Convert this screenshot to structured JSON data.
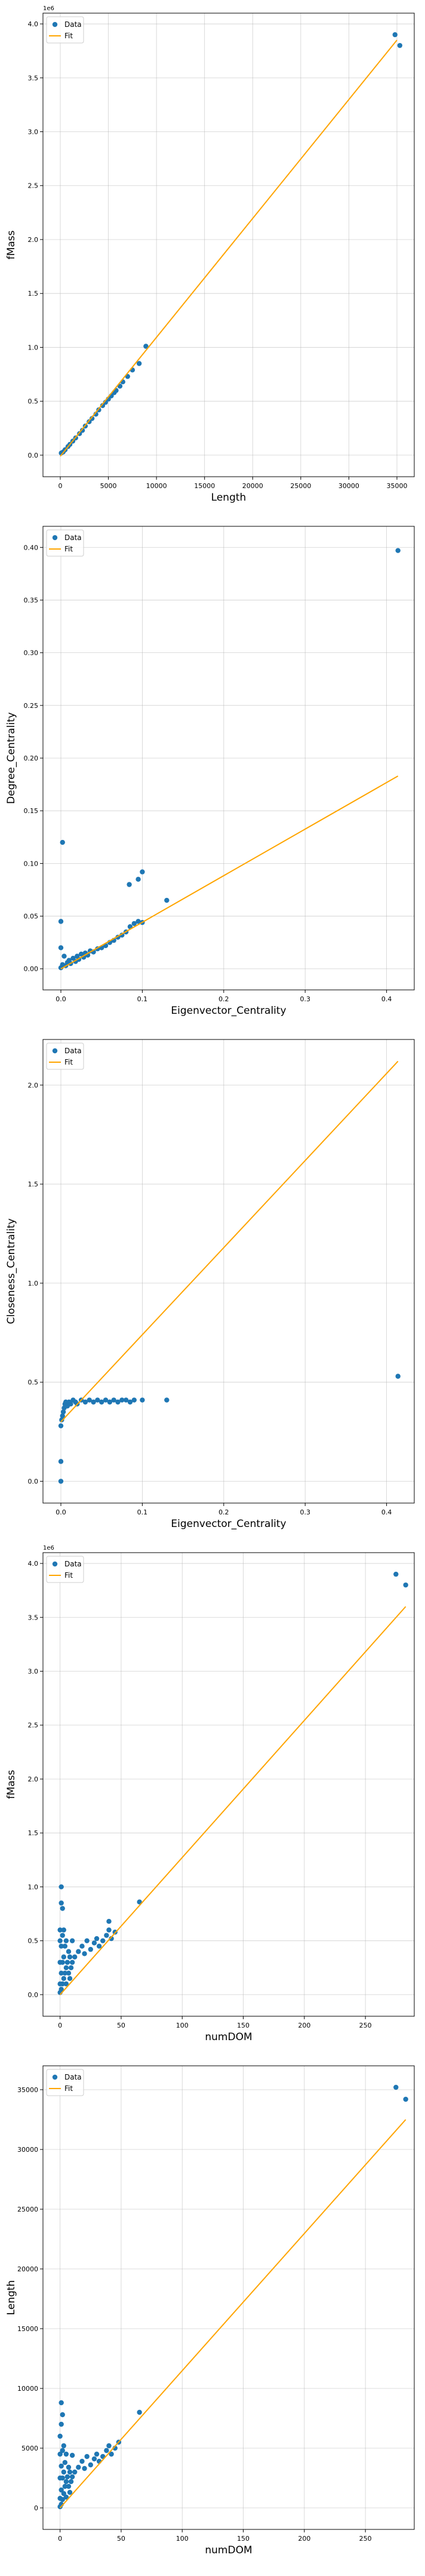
{
  "legend": {
    "data_label": "Data",
    "fit_label": "Fit"
  },
  "colors": {
    "data": "#1f77b4",
    "fit": "#ffa500",
    "grid": "#b0b0b0",
    "axis": "#000000"
  },
  "chart_data": [
    {
      "type": "scatter",
      "xlabel": "Length",
      "ylabel": "fMass",
      "y_multiplier": "1e6",
      "xlim": [
        -1800,
        36800
      ],
      "ylim": [
        -0.2,
        4.1
      ],
      "xticks": [
        0,
        5000,
        10000,
        15000,
        20000,
        25000,
        30000,
        35000
      ],
      "xtick_labels": [
        "0",
        "5000",
        "10000",
        "15000",
        "20000",
        "25000",
        "30000",
        "35000"
      ],
      "yticks": [
        0.0,
        0.5,
        1.0,
        1.5,
        2.0,
        2.5,
        3.0,
        3.5,
        4.0
      ],
      "ytick_labels": [
        "0.0",
        "0.5",
        "1.0",
        "1.5",
        "2.0",
        "2.5",
        "3.0",
        "3.5",
        "4.0"
      ],
      "legend_position": "top-left",
      "grid": true,
      "series": [
        {
          "name": "Data",
          "kind": "points",
          "points": [
            [
              100,
              0.02
            ],
            [
              300,
              0.03
            ],
            [
              500,
              0.05
            ],
            [
              800,
              0.08
            ],
            [
              1000,
              0.1
            ],
            [
              1300,
              0.13
            ],
            [
              1600,
              0.16
            ],
            [
              2000,
              0.2
            ],
            [
              2300,
              0.23
            ],
            [
              2600,
              0.27
            ],
            [
              3000,
              0.31
            ],
            [
              3300,
              0.34
            ],
            [
              3700,
              0.38
            ],
            [
              4000,
              0.42
            ],
            [
              4400,
              0.46
            ],
            [
              4700,
              0.49
            ],
            [
              5000,
              0.52
            ],
            [
              5300,
              0.55
            ],
            [
              5600,
              0.58
            ],
            [
              5800,
              0.6
            ],
            [
              6200,
              0.64
            ],
            [
              6500,
              0.68
            ],
            [
              7000,
              0.73
            ],
            [
              7500,
              0.79
            ],
            [
              8200,
              0.85
            ],
            [
              8900,
              1.01
            ],
            [
              34800,
              3.9
            ],
            [
              35300,
              3.8
            ]
          ]
        },
        {
          "name": "Fit",
          "kind": "line",
          "points": [
            [
              0,
              -0.01
            ],
            [
              35000,
              3.85
            ]
          ]
        }
      ]
    },
    {
      "type": "scatter",
      "xlabel": "Eigenvector_Centrality",
      "ylabel": "Degree_Centrality",
      "xlim": [
        -0.022,
        0.434
      ],
      "ylim": [
        -0.02,
        0.42
      ],
      "xticks": [
        0.0,
        0.1,
        0.2,
        0.3,
        0.4
      ],
      "xtick_labels": [
        "0.0",
        "0.1",
        "0.2",
        "0.3",
        "0.4"
      ],
      "yticks": [
        0.0,
        0.05,
        0.1,
        0.15,
        0.2,
        0.25,
        0.3,
        0.35,
        0.4
      ],
      "ytick_labels": [
        "0.00",
        "0.05",
        "0.10",
        "0.15",
        "0.20",
        "0.25",
        "0.30",
        "0.35",
        "0.40"
      ],
      "legend_position": "top-left",
      "grid": true,
      "series": [
        {
          "name": "Data",
          "kind": "points",
          "points": [
            [
              0.0,
              0.001
            ],
            [
              0.002,
              0.004
            ],
            [
              0.004,
              0.012
            ],
            [
              0.006,
              0.003
            ],
            [
              0.008,
              0.006
            ],
            [
              0.01,
              0.008
            ],
            [
              0.012,
              0.005
            ],
            [
              0.015,
              0.01
            ],
            [
              0.018,
              0.007
            ],
            [
              0.02,
              0.012
            ],
            [
              0.022,
              0.009
            ],
            [
              0.025,
              0.014
            ],
            [
              0.028,
              0.011
            ],
            [
              0.03,
              0.015
            ],
            [
              0.033,
              0.013
            ],
            [
              0.036,
              0.017
            ],
            [
              0.04,
              0.016
            ],
            [
              0.045,
              0.019
            ],
            [
              0.05,
              0.02
            ],
            [
              0.055,
              0.022
            ],
            [
              0.06,
              0.025
            ],
            [
              0.065,
              0.027
            ],
            [
              0.07,
              0.03
            ],
            [
              0.075,
              0.032
            ],
            [
              0.08,
              0.035
            ],
            [
              0.085,
              0.04
            ],
            [
              0.09,
              0.043
            ],
            [
              0.095,
              0.045
            ],
            [
              0.1,
              0.044
            ],
            [
              0.0,
              0.045
            ],
            [
              0.0,
              0.02
            ],
            [
              0.002,
              0.12
            ],
            [
              0.084,
              0.08
            ],
            [
              0.095,
              0.085
            ],
            [
              0.1,
              0.092
            ],
            [
              0.13,
              0.065
            ],
            [
              0.414,
              0.397
            ]
          ]
        },
        {
          "name": "Fit",
          "kind": "line",
          "points": [
            [
              0.0,
              0.0
            ],
            [
              0.414,
              0.183
            ]
          ]
        }
      ]
    },
    {
      "type": "scatter",
      "xlabel": "Eigenvector_Centrality",
      "ylabel": "Closeness_Centrality",
      "xlim": [
        -0.022,
        0.434
      ],
      "ylim": [
        -0.11,
        2.23
      ],
      "xticks": [
        0.0,
        0.1,
        0.2,
        0.3,
        0.4
      ],
      "xtick_labels": [
        "0.0",
        "0.1",
        "0.2",
        "0.3",
        "0.4"
      ],
      "yticks": [
        0.0,
        0.5,
        1.0,
        1.5,
        2.0
      ],
      "ytick_labels": [
        "0.0",
        "0.5",
        "1.0",
        "1.5",
        "2.0"
      ],
      "legend_position": "top-left",
      "grid": true,
      "series": [
        {
          "name": "Data",
          "kind": "points",
          "points": [
            [
              0.0,
              0.0
            ],
            [
              0.0,
              0.1
            ],
            [
              0.0,
              0.28
            ],
            [
              0.001,
              0.31
            ],
            [
              0.002,
              0.33
            ],
            [
              0.003,
              0.35
            ],
            [
              0.004,
              0.37
            ],
            [
              0.005,
              0.39
            ],
            [
              0.006,
              0.4
            ],
            [
              0.008,
              0.38
            ],
            [
              0.01,
              0.4
            ],
            [
              0.012,
              0.39
            ],
            [
              0.015,
              0.41
            ],
            [
              0.018,
              0.4
            ],
            [
              0.02,
              0.39
            ],
            [
              0.025,
              0.41
            ],
            [
              0.03,
              0.4
            ],
            [
              0.035,
              0.41
            ],
            [
              0.04,
              0.4
            ],
            [
              0.045,
              0.41
            ],
            [
              0.05,
              0.4
            ],
            [
              0.055,
              0.41
            ],
            [
              0.06,
              0.4
            ],
            [
              0.065,
              0.41
            ],
            [
              0.07,
              0.4
            ],
            [
              0.075,
              0.41
            ],
            [
              0.08,
              0.41
            ],
            [
              0.085,
              0.4
            ],
            [
              0.09,
              0.41
            ],
            [
              0.1,
              0.41
            ],
            [
              0.13,
              0.41
            ],
            [
              0.414,
              0.53
            ]
          ]
        },
        {
          "name": "Fit",
          "kind": "line",
          "points": [
            [
              0.0,
              0.3
            ],
            [
              0.414,
              2.12
            ]
          ]
        }
      ]
    },
    {
      "type": "scatter",
      "xlabel": "numDOM",
      "ylabel": "fMass",
      "y_multiplier": "1e6",
      "xlim": [
        -14,
        290
      ],
      "ylim": [
        -0.2,
        4.1
      ],
      "xticks": [
        0,
        50,
        100,
        150,
        200,
        250
      ],
      "xtick_labels": [
        "0",
        "50",
        "100",
        "150",
        "200",
        "250"
      ],
      "yticks": [
        0.0,
        0.5,
        1.0,
        1.5,
        2.0,
        2.5,
        3.0,
        3.5,
        4.0
      ],
      "ytick_labels": [
        "0.0",
        "0.5",
        "1.0",
        "1.5",
        "2.0",
        "2.5",
        "3.0",
        "3.5",
        "4.0"
      ],
      "legend_position": "top-left",
      "grid": true,
      "series": [
        {
          "name": "Data",
          "kind": "points",
          "points": [
            [
              0,
              0.02
            ],
            [
              0,
              0.1
            ],
            [
              0,
              0.3
            ],
            [
              0,
              0.5
            ],
            [
              0,
              0.6
            ],
            [
              1,
              0.05
            ],
            [
              1,
              0.2
            ],
            [
              1,
              0.45
            ],
            [
              1,
              0.85
            ],
            [
              1,
              1.0
            ],
            [
              2,
              0.1
            ],
            [
              2,
              0.3
            ],
            [
              2,
              0.55
            ],
            [
              2,
              0.8
            ],
            [
              3,
              0.15
            ],
            [
              3,
              0.35
            ],
            [
              3,
              0.6
            ],
            [
              4,
              0.2
            ],
            [
              4,
              0.45
            ],
            [
              5,
              0.1
            ],
            [
              5,
              0.25
            ],
            [
              5,
              0.5
            ],
            [
              6,
              0.3
            ],
            [
              7,
              0.2
            ],
            [
              7,
              0.4
            ],
            [
              8,
              0.15
            ],
            [
              8,
              0.35
            ],
            [
              9,
              0.25
            ],
            [
              10,
              0.3
            ],
            [
              10,
              0.5
            ],
            [
              12,
              0.35
            ],
            [
              15,
              0.4
            ],
            [
              18,
              0.45
            ],
            [
              20,
              0.38
            ],
            [
              22,
              0.5
            ],
            [
              25,
              0.42
            ],
            [
              28,
              0.48
            ],
            [
              30,
              0.52
            ],
            [
              32,
              0.45
            ],
            [
              35,
              0.5
            ],
            [
              38,
              0.55
            ],
            [
              40,
              0.6
            ],
            [
              42,
              0.52
            ],
            [
              45,
              0.58
            ],
            [
              40,
              0.68
            ],
            [
              65,
              0.86
            ],
            [
              275,
              3.9
            ],
            [
              283,
              3.8
            ]
          ]
        },
        {
          "name": "Fit",
          "kind": "line",
          "points": [
            [
              0,
              0.0
            ],
            [
              283,
              3.6
            ]
          ]
        }
      ]
    },
    {
      "type": "scatter",
      "xlabel": "numDOM",
      "ylabel": "Length",
      "xlim": [
        -14,
        290
      ],
      "ylim": [
        -1800,
        37000
      ],
      "xticks": [
        0,
        50,
        100,
        150,
        200,
        250
      ],
      "xtick_labels": [
        "0",
        "50",
        "100",
        "150",
        "200",
        "250"
      ],
      "yticks": [
        0,
        5000,
        10000,
        15000,
        20000,
        25000,
        30000,
        35000
      ],
      "ytick_labels": [
        "0",
        "5000",
        "10000",
        "15000",
        "20000",
        "25000",
        "30000",
        "35000"
      ],
      "legend_position": "top-left",
      "grid": true,
      "series": [
        {
          "name": "Data",
          "kind": "points",
          "points": [
            [
              0,
              100
            ],
            [
              0,
              800
            ],
            [
              0,
              2500
            ],
            [
              0,
              4500
            ],
            [
              0,
              6000
            ],
            [
              1,
              300
            ],
            [
              1,
              1500
            ],
            [
              1,
              3500
            ],
            [
              1,
              7000
            ],
            [
              1,
              8800
            ],
            [
              2,
              700
            ],
            [
              2,
              2500
            ],
            [
              2,
              4800
            ],
            [
              2,
              7800
            ],
            [
              3,
              1200
            ],
            [
              3,
              3000
            ],
            [
              3,
              5200
            ],
            [
              4,
              1800
            ],
            [
              4,
              3800
            ],
            [
              5,
              900
            ],
            [
              5,
              2200
            ],
            [
              5,
              4500
            ],
            [
              6,
              2600
            ],
            [
              7,
              1800
            ],
            [
              7,
              3400
            ],
            [
              8,
              1300
            ],
            [
              8,
              3000
            ],
            [
              9,
              2200
            ],
            [
              10,
              2600
            ],
            [
              10,
              4400
            ],
            [
              12,
              3000
            ],
            [
              15,
              3400
            ],
            [
              18,
              3900
            ],
            [
              20,
              3300
            ],
            [
              22,
              4300
            ],
            [
              25,
              3600
            ],
            [
              28,
              4100
            ],
            [
              30,
              4500
            ],
            [
              32,
              3900
            ],
            [
              35,
              4300
            ],
            [
              38,
              4800
            ],
            [
              40,
              5200
            ],
            [
              42,
              4500
            ],
            [
              45,
              5000
            ],
            [
              48,
              5500
            ],
            [
              65,
              8000
            ],
            [
              275,
              35200
            ],
            [
              283,
              34200
            ]
          ]
        },
        {
          "name": "Fit",
          "kind": "line",
          "points": [
            [
              0,
              0
            ],
            [
              283,
              32500
            ]
          ]
        }
      ]
    }
  ]
}
